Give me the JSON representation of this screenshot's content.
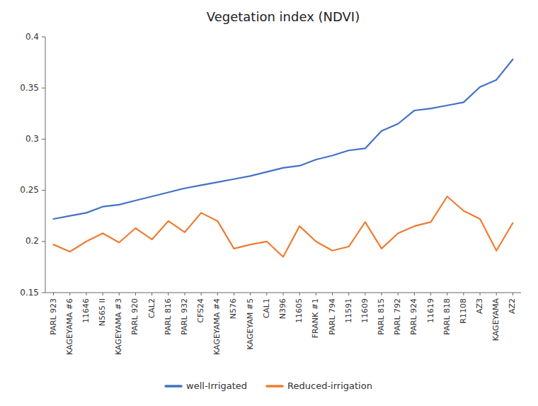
{
  "chart_data": {
    "type": "line",
    "title": "Vegetation index (NDVI)",
    "categories": [
      "PARL 923",
      "KAGEYAMA #6",
      "11646",
      "N565 II",
      "KAGEYAMA #3",
      "PARL 920",
      "CAL2",
      "PARL 816",
      "PARL 932",
      "CFS24",
      "KAGEYAMA #4",
      "N576",
      "KAGEYAM #5",
      "CAL1",
      "N396",
      "11605",
      "FRANK #1",
      "PARL 794",
      "11591",
      "11609",
      "PARL 815",
      "PARL 792",
      "PARL 924",
      "11619",
      "PARL 818",
      "R1108",
      "AZ3",
      "KAGEYAMA",
      "AZ2"
    ],
    "series": [
      {
        "name": "well-Irrigated",
        "color": "#4472C4",
        "values": [
          0.222,
          0.225,
          0.228,
          0.234,
          0.236,
          0.24,
          0.244,
          0.248,
          0.252,
          0.255,
          0.258,
          0.261,
          0.264,
          0.268,
          0.272,
          0.274,
          0.28,
          0.284,
          0.289,
          0.291,
          0.308,
          0.315,
          0.328,
          0.33,
          0.333,
          0.336,
          0.351,
          0.358,
          0.378
        ]
      },
      {
        "name": "Reduced-irrigation",
        "color": "#ED7D31",
        "values": [
          0.197,
          0.19,
          0.2,
          0.208,
          0.199,
          0.213,
          0.202,
          0.22,
          0.209,
          0.228,
          0.22,
          0.193,
          0.197,
          0.2,
          0.185,
          0.215,
          0.2,
          0.191,
          0.195,
          0.219,
          0.193,
          0.208,
          0.215,
          0.219,
          0.244,
          0.23,
          0.222,
          0.191,
          0.218
        ]
      }
    ],
    "ylim": [
      0.15,
      0.4
    ],
    "yticks": [
      0.15,
      0.2,
      0.25,
      0.3,
      0.35,
      0.4
    ],
    "grid": false,
    "legend": "bottom"
  }
}
